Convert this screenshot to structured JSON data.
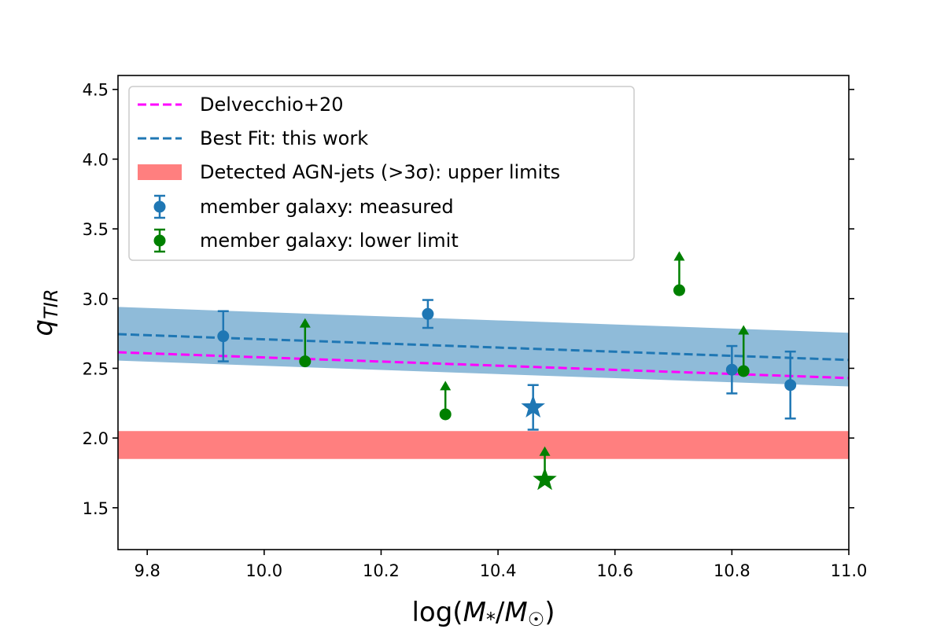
{
  "chart_data": {
    "type": "scatter",
    "title": "",
    "xlabel": "log(M*/M☉)",
    "ylabel": "qTIR",
    "xlim": [
      9.75,
      11.0
    ],
    "ylim": [
      1.2,
      4.6
    ],
    "xticks": [
      9.8,
      10.0,
      10.2,
      10.4,
      10.6,
      10.8,
      11.0
    ],
    "xtick_labels": [
      "9.8",
      "10.0",
      "10.2",
      "10.4",
      "10.6",
      "10.8",
      "11.0"
    ],
    "yticks": [
      1.5,
      2.0,
      2.5,
      3.0,
      3.5,
      4.0,
      4.5
    ],
    "ytick_labels": [
      "1.5",
      "2.0",
      "2.5",
      "3.0",
      "3.5",
      "4.0",
      "4.5"
    ],
    "grid": false,
    "legend_position": "top-left",
    "lines": [
      {
        "name": "Delvecchio+20",
        "color": "#ff00ff",
        "style": "dashed",
        "x": [
          9.75,
          11.0
        ],
        "y": [
          2.615,
          2.43
        ]
      },
      {
        "name": "Best Fit: this work",
        "color": "#1f77b4",
        "style": "dashed",
        "x": [
          9.75,
          11.0
        ],
        "y": [
          2.745,
          2.56
        ]
      }
    ],
    "best_fit_band": {
      "color": "#1f77b4",
      "opacity": 0.5,
      "x": [
        9.75,
        11.0
      ],
      "y_low": [
        2.555,
        2.37
      ],
      "y_high": [
        2.94,
        2.755
      ]
    },
    "agn_band": {
      "name": "Detected AGN-jets (>3σ): upper limits",
      "color": "#ff7f7f",
      "y_low": 1.85,
      "y_high": 2.05
    },
    "series": [
      {
        "name": "member galaxy: measured",
        "color": "#1f77b4",
        "points": [
          {
            "x": 9.93,
            "y": 2.73,
            "err_low": 0.18,
            "err_high": 0.18,
            "marker": "circle"
          },
          {
            "x": 10.28,
            "y": 2.89,
            "err_low": 0.1,
            "err_high": 0.1,
            "marker": "circle"
          },
          {
            "x": 10.46,
            "y": 2.22,
            "err_low": 0.16,
            "err_high": 0.16,
            "marker": "star"
          },
          {
            "x": 10.8,
            "y": 2.49,
            "err_low": 0.17,
            "err_high": 0.17,
            "marker": "circle"
          },
          {
            "x": 10.9,
            "y": 2.38,
            "err_low": 0.24,
            "err_high": 0.24,
            "marker": "circle"
          }
        ]
      },
      {
        "name": "member galaxy: lower limit",
        "color": "#008000",
        "points": [
          {
            "x": 10.07,
            "y": 2.55,
            "arrow_len": 0.31,
            "marker": "circle"
          },
          {
            "x": 10.31,
            "y": 2.17,
            "arrow_len": 0.24,
            "marker": "circle"
          },
          {
            "x": 10.48,
            "y": 1.7,
            "arrow_len": 0.24,
            "marker": "star"
          },
          {
            "x": 10.71,
            "y": 3.06,
            "arrow_len": 0.28,
            "marker": "circle"
          },
          {
            "x": 10.82,
            "y": 2.48,
            "arrow_len": 0.33,
            "marker": "circle"
          }
        ]
      }
    ],
    "legend": [
      {
        "label": "Delvecchio+20",
        "kind": "line",
        "color": "#ff00ff"
      },
      {
        "label": "Best Fit: this work",
        "kind": "line",
        "color": "#1f77b4"
      },
      {
        "label": "Detected AGN-jets (>3σ): upper limits",
        "kind": "patch",
        "color": "#ff7f7f"
      },
      {
        "label": "member galaxy: measured",
        "kind": "errorbar",
        "color": "#1f77b4"
      },
      {
        "label": "member galaxy: lower limit",
        "kind": "errorbar",
        "color": "#008000"
      }
    ]
  }
}
